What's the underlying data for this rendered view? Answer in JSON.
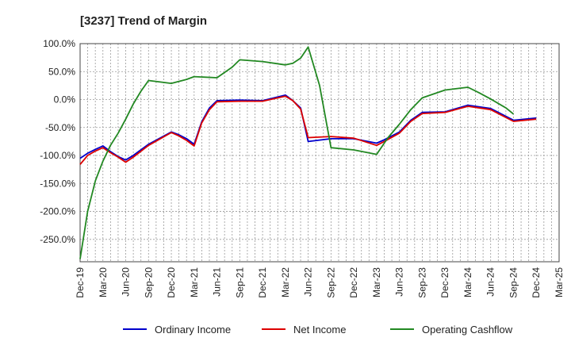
{
  "chart_data": {
    "type": "line",
    "title": "[3237]  Trend of Margin",
    "xlabel": "",
    "ylabel": "",
    "ylim": [
      -290,
      100
    ],
    "y_ticks": [
      100,
      50,
      0,
      -50,
      -100,
      -150,
      -200,
      -250
    ],
    "y_tick_labels": [
      "100.0%",
      "50.0%",
      "0.0%",
      "-50.0%",
      "-100.0%",
      "-150.0%",
      "-200.0%",
      "-250.0%"
    ],
    "x_tick_labels": [
      "Dec-19",
      "Mar-20",
      "Jun-20",
      "Sep-20",
      "Dec-20",
      "Mar-21",
      "Jun-21",
      "Sep-21",
      "Dec-21",
      "Mar-22",
      "Jun-22",
      "Sep-22",
      "Dec-22",
      "Mar-23",
      "Jun-23",
      "Sep-23",
      "Dec-23",
      "Mar-24",
      "Jun-24",
      "Sep-24",
      "Dec-24",
      "Mar-25"
    ],
    "grid": true,
    "legend_position": "bottom",
    "series": [
      {
        "name": "Ordinary Income",
        "color": "#0000cc",
        "points": [
          [
            0,
            -105
          ],
          [
            0.33,
            -96
          ],
          [
            0.67,
            -89
          ],
          [
            1,
            -83
          ],
          [
            1.33,
            -93
          ],
          [
            1.67,
            -102
          ],
          [
            2,
            -108
          ],
          [
            2.33,
            -100
          ],
          [
            3,
            -80
          ],
          [
            4,
            -58
          ],
          [
            4.33,
            -63
          ],
          [
            4.67,
            -70
          ],
          [
            5,
            -80
          ],
          [
            5.33,
            -40
          ],
          [
            5.67,
            -15
          ],
          [
            6,
            -2
          ],
          [
            7,
            -1
          ],
          [
            8,
            -2
          ],
          [
            9,
            8
          ],
          [
            9.33,
            -2
          ],
          [
            9.67,
            -15
          ],
          [
            10,
            -75
          ],
          [
            11,
            -70
          ],
          [
            12,
            -70
          ],
          [
            13,
            -78
          ],
          [
            13.33,
            -72
          ],
          [
            14,
            -58
          ],
          [
            14.5,
            -37
          ],
          [
            15,
            -23
          ],
          [
            16,
            -22
          ],
          [
            17,
            -10
          ],
          [
            18,
            -16
          ],
          [
            19,
            -37
          ],
          [
            20,
            -33
          ]
        ]
      },
      {
        "name": "Net Income",
        "color": "#dd0000",
        "points": [
          [
            0,
            -116
          ],
          [
            0.33,
            -100
          ],
          [
            0.67,
            -92
          ],
          [
            1,
            -86
          ],
          [
            1.33,
            -95
          ],
          [
            1.67,
            -103
          ],
          [
            2,
            -112
          ],
          [
            2.33,
            -103
          ],
          [
            3,
            -82
          ],
          [
            4,
            -59
          ],
          [
            4.33,
            -65
          ],
          [
            4.67,
            -73
          ],
          [
            5,
            -83
          ],
          [
            5.33,
            -42
          ],
          [
            5.67,
            -18
          ],
          [
            6,
            -4
          ],
          [
            7,
            -3
          ],
          [
            8,
            -3
          ],
          [
            9,
            6
          ],
          [
            9.33,
            -2
          ],
          [
            9.67,
            -17
          ],
          [
            10,
            -68
          ],
          [
            11,
            -66
          ],
          [
            12,
            -69
          ],
          [
            13,
            -82
          ],
          [
            13.33,
            -75
          ],
          [
            14,
            -60
          ],
          [
            14.5,
            -39
          ],
          [
            15,
            -25
          ],
          [
            16,
            -23
          ],
          [
            17,
            -12
          ],
          [
            18,
            -18
          ],
          [
            19,
            -39
          ],
          [
            20,
            -35
          ]
        ]
      },
      {
        "name": "Operating Cashflow",
        "color": "#228822",
        "points": [
          [
            0,
            -285
          ],
          [
            0.33,
            -200
          ],
          [
            0.67,
            -145
          ],
          [
            1,
            -110
          ],
          [
            1.33,
            -82
          ],
          [
            1.67,
            -60
          ],
          [
            2,
            -35
          ],
          [
            2.33,
            -8
          ],
          [
            2.67,
            15
          ],
          [
            3,
            34
          ],
          [
            4,
            29
          ],
          [
            4.67,
            36
          ],
          [
            5,
            41
          ],
          [
            6,
            39
          ],
          [
            6.67,
            58
          ],
          [
            7,
            71
          ],
          [
            8,
            68
          ],
          [
            9,
            62
          ],
          [
            9.33,
            65
          ],
          [
            9.67,
            74
          ],
          [
            10,
            94
          ],
          [
            10.5,
            25
          ],
          [
            11,
            -86
          ],
          [
            12,
            -90
          ],
          [
            13,
            -98
          ],
          [
            13.5,
            -68
          ],
          [
            14,
            -44
          ],
          [
            14.5,
            -18
          ],
          [
            15,
            3
          ],
          [
            16,
            17
          ],
          [
            17,
            22
          ],
          [
            17.5,
            12
          ],
          [
            18,
            1
          ],
          [
            18.67,
            -15
          ],
          [
            19,
            -26
          ]
        ]
      }
    ]
  }
}
